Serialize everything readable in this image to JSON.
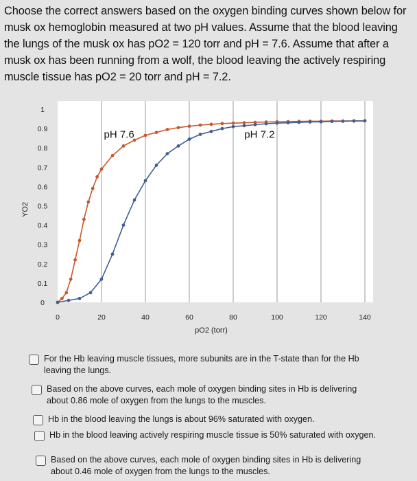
{
  "question": {
    "text": "Choose the correct answers based on the oxygen binding curves shown below for musk ox hemoglobin measured at two pH values. Assume that the blood leaving the lungs of the musk ox has pO2 = 120 torr and pH = 7.6. Assume that after a musk ox has been running from a wolf, the blood leaving the actively respiring muscle tissue has pO2 = 20 torr and pH = 7.2."
  },
  "chart_data": {
    "type": "line",
    "xlabel": "pO2 (torr)",
    "ylabel": "YO2",
    "xlim": [
      0,
      140
    ],
    "ylim": [
      0,
      1
    ],
    "x_ticks": [
      "0",
      "20",
      "40",
      "60",
      "80",
      "100",
      "120",
      "140"
    ],
    "y_ticks": [
      "0",
      "0.1",
      "0.2",
      "0.3",
      "0.4",
      "0.5",
      "0.6",
      "0.7",
      "0.8",
      "0.9",
      "1"
    ],
    "grid": "vertical",
    "series": [
      {
        "name": "pH 7.6",
        "color": "#c8572f",
        "x": [
          0,
          2,
          4,
          6,
          8,
          10,
          12,
          14,
          16,
          18,
          20,
          25,
          30,
          35,
          40,
          45,
          50,
          55,
          60,
          65,
          70,
          75,
          80,
          85,
          90,
          95,
          100,
          105,
          110,
          115,
          120,
          125,
          130,
          135,
          140
        ],
        "values": [
          0,
          0.02,
          0.05,
          0.12,
          0.22,
          0.32,
          0.43,
          0.52,
          0.59,
          0.65,
          0.69,
          0.76,
          0.81,
          0.84,
          0.865,
          0.88,
          0.895,
          0.905,
          0.912,
          0.918,
          0.922,
          0.926,
          0.928,
          0.93,
          0.932,
          0.934,
          0.935,
          0.936,
          0.937,
          0.938,
          0.938,
          0.939,
          0.939,
          0.94,
          0.94
        ]
      },
      {
        "name": "pH 7.2",
        "color": "#3f5f93",
        "x": [
          0,
          5,
          10,
          15,
          20,
          25,
          30,
          35,
          40,
          45,
          50,
          55,
          60,
          65,
          70,
          75,
          80,
          85,
          90,
          95,
          100,
          105,
          110,
          115,
          120,
          125,
          130,
          135,
          140
        ],
        "values": [
          0,
          0.01,
          0.02,
          0.05,
          0.12,
          0.25,
          0.4,
          0.53,
          0.63,
          0.71,
          0.77,
          0.81,
          0.845,
          0.87,
          0.885,
          0.9,
          0.91,
          0.915,
          0.92,
          0.925,
          0.928,
          0.93,
          0.932,
          0.934,
          0.935,
          0.937,
          0.938,
          0.939,
          0.94
        ]
      }
    ],
    "annotations": [
      {
        "text": "pH 7.6",
        "x": 28,
        "y": 0.87
      },
      {
        "text": "pH 7.2",
        "x": 92,
        "y": 0.87
      }
    ]
  },
  "options": [
    {
      "text": "For the Hb leaving muscle tissues, more subunits are in the T-state than for the Hb leaving the lungs."
    },
    {
      "text": "Based on the above curves, each mole of oxygen binding sites in Hb is delivering about 0.86 mole of oxygen from the lungs to the muscles."
    },
    {
      "text": "Hb in the blood leaving the lungs is about 96% saturated with oxygen."
    },
    {
      "text": "Hb in the blood leaving actively respiring muscle tissue is 50% saturated with oxygen."
    },
    {
      "text": "Based on the above curves, each mole of oxygen binding sites in Hb is delivering about 0.46 mole of oxygen from the lungs to the muscles."
    }
  ]
}
